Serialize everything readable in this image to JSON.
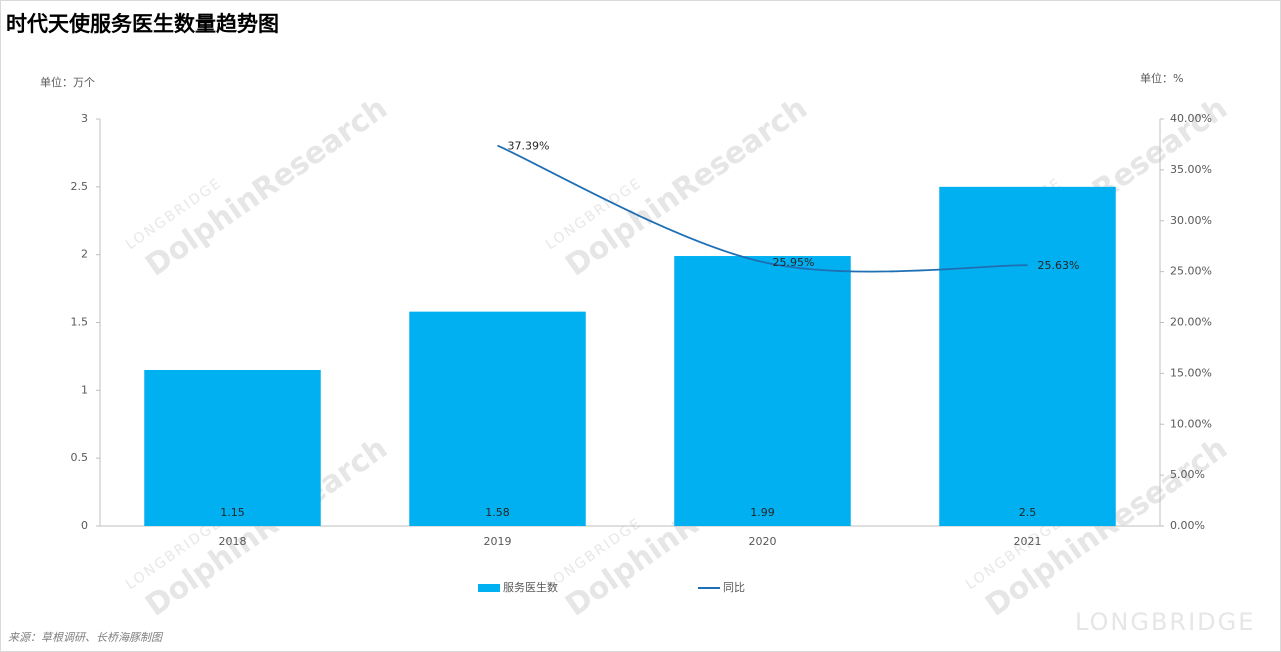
{
  "chart_data": {
    "type": "bar-line",
    "title": "时代天使服务医生数量趋势图",
    "y_unit": "单位：万个",
    "y2_unit": "单位：%",
    "source": "来源：草根调研、长桥海豚制图",
    "watermark": [
      "LONGBRIDGE",
      "DolphinResearch"
    ],
    "categories": [
      "2018",
      "2019",
      "2020",
      "2021"
    ],
    "series": [
      {
        "name": "服务医生数",
        "type": "bar",
        "color": "#00b0f0",
        "values": [
          1.15,
          1.58,
          1.99,
          2.5
        ]
      },
      {
        "name": "同比",
        "type": "line",
        "axis": "y2",
        "color": "#1f6fb4",
        "values": [
          null,
          37.39,
          25.95,
          25.63
        ],
        "value_labels": [
          null,
          "37.39%",
          "25.95%",
          "25.63%"
        ]
      }
    ],
    "ylim": [
      0,
      3
    ],
    "yticks": [
      0,
      0.5,
      1,
      1.5,
      2,
      2.5,
      3
    ],
    "y2lim": [
      0,
      40
    ],
    "y2ticks": [
      {
        "value": 0,
        "label": "0.00%"
      },
      {
        "value": 5,
        "label": "5.00%"
      },
      {
        "value": 10,
        "label": "10.00%"
      },
      {
        "value": 15,
        "label": "15.00%"
      },
      {
        "value": 20,
        "label": "20.00%"
      },
      {
        "value": 25,
        "label": "25.00%"
      },
      {
        "value": 30,
        "label": "30.00%"
      },
      {
        "value": 35,
        "label": "35.00%"
      },
      {
        "value": 40,
        "label": "40.00%"
      }
    ],
    "grid": false,
    "legend": "bottom"
  }
}
